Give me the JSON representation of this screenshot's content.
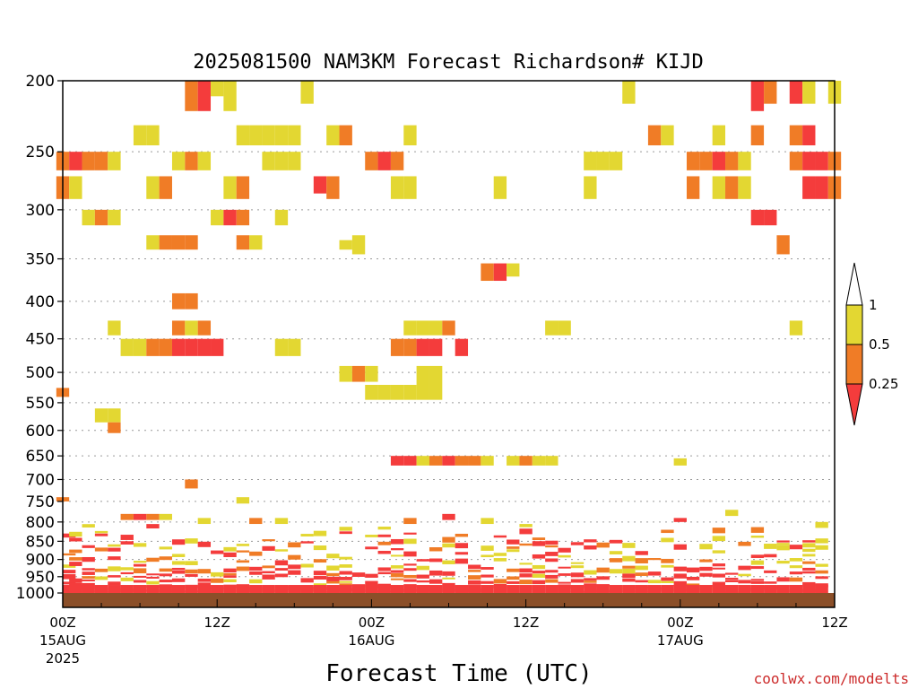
{
  "chart_data": {
    "type": "heatmap",
    "title": "2025081500 NAM3KM Forecast Richardson# KIJD",
    "xlabel": "Forecast Time (UTC)",
    "ylabel": "",
    "xlim": [
      0,
      60
    ],
    "ylim": [
      1000,
      200
    ],
    "y_scale": "log",
    "yticks": [
      "200",
      "250",
      "300",
      "350",
      "400",
      "450",
      "500",
      "550",
      "600",
      "650",
      "700",
      "750",
      "800",
      "850",
      "900",
      "950",
      "1000"
    ],
    "grid": true,
    "xticks": [
      {
        "t": 0,
        "label": "00Z",
        "sub1": "15AUG",
        "sub2": "2025"
      },
      {
        "t": 12,
        "label": "12Z",
        "sub1": "",
        "sub2": ""
      },
      {
        "t": 24,
        "label": "00Z",
        "sub1": "16AUG",
        "sub2": ""
      },
      {
        "t": 36,
        "label": "12Z",
        "sub1": "",
        "sub2": ""
      },
      {
        "t": 48,
        "label": "00Z",
        "sub1": "17AUG",
        "sub2": ""
      },
      {
        "t": 60,
        "label": "12Z",
        "sub1": "",
        "sub2": ""
      }
    ],
    "legend": {
      "position": "right",
      "labels": [
        "1",
        "0.5",
        "0.25"
      ],
      "bins": [
        {
          "range": "0.5-1",
          "color": "#e3d732"
        },
        {
          "range": "0.25-0.5",
          "color": "#f07c26"
        },
        {
          "range": "<0.25",
          "color": "#f43c3c"
        }
      ]
    },
    "colors": {
      "low": "#f43c3c",
      "mid": "#f07c26",
      "high": "#e3d732",
      "ground": "#8b4f29"
    },
    "cells": [
      [
        10,
        200,
        220,
        "mid"
      ],
      [
        11,
        200,
        220,
        "low"
      ],
      [
        12,
        200,
        210,
        "high"
      ],
      [
        13,
        200,
        220,
        "high"
      ],
      [
        19,
        200,
        215,
        "high"
      ],
      [
        44,
        200,
        215,
        "high"
      ],
      [
        54,
        200,
        220,
        "low"
      ],
      [
        55,
        200,
        215,
        "mid"
      ],
      [
        57,
        200,
        215,
        "low"
      ],
      [
        58,
        200,
        215,
        "high"
      ],
      [
        60,
        200,
        215,
        "high"
      ],
      [
        6,
        230,
        245,
        "high"
      ],
      [
        7,
        230,
        245,
        "high"
      ],
      [
        14,
        230,
        245,
        "high"
      ],
      [
        15,
        230,
        245,
        "high"
      ],
      [
        16,
        230,
        245,
        "high"
      ],
      [
        17,
        230,
        245,
        "high"
      ],
      [
        18,
        230,
        245,
        "high"
      ],
      [
        21,
        230,
        245,
        "high"
      ],
      [
        22,
        230,
        245,
        "mid"
      ],
      [
        27,
        230,
        245,
        "high"
      ],
      [
        46,
        230,
        245,
        "mid"
      ],
      [
        47,
        230,
        245,
        "high"
      ],
      [
        51,
        230,
        245,
        "high"
      ],
      [
        54,
        230,
        245,
        "mid"
      ],
      [
        57,
        230,
        245,
        "mid"
      ],
      [
        58,
        230,
        245,
        "low"
      ],
      [
        0,
        250,
        265,
        "mid"
      ],
      [
        1,
        250,
        265,
        "low"
      ],
      [
        2,
        250,
        265,
        "mid"
      ],
      [
        3,
        250,
        265,
        "mid"
      ],
      [
        4,
        250,
        265,
        "high"
      ],
      [
        9,
        250,
        265,
        "high"
      ],
      [
        10,
        250,
        265,
        "mid"
      ],
      [
        11,
        250,
        265,
        "high"
      ],
      [
        16,
        250,
        265,
        "high"
      ],
      [
        17,
        250,
        265,
        "high"
      ],
      [
        18,
        250,
        265,
        "high"
      ],
      [
        24,
        250,
        265,
        "mid"
      ],
      [
        25,
        250,
        265,
        "low"
      ],
      [
        26,
        250,
        265,
        "mid"
      ],
      [
        41,
        250,
        265,
        "high"
      ],
      [
        42,
        250,
        265,
        "high"
      ],
      [
        43,
        250,
        265,
        "high"
      ],
      [
        49,
        250,
        265,
        "mid"
      ],
      [
        50,
        250,
        265,
        "mid"
      ],
      [
        51,
        250,
        265,
        "low"
      ],
      [
        52,
        250,
        265,
        "mid"
      ],
      [
        53,
        250,
        265,
        "high"
      ],
      [
        57,
        250,
        265,
        "mid"
      ],
      [
        58,
        250,
        265,
        "low"
      ],
      [
        59,
        250,
        265,
        "low"
      ],
      [
        60,
        250,
        265,
        "mid"
      ],
      [
        0,
        270,
        290,
        "mid"
      ],
      [
        1,
        270,
        290,
        "high"
      ],
      [
        7,
        270,
        290,
        "high"
      ],
      [
        8,
        270,
        290,
        "mid"
      ],
      [
        13,
        270,
        290,
        "high"
      ],
      [
        14,
        270,
        290,
        "mid"
      ],
      [
        20,
        270,
        285,
        "low"
      ],
      [
        21,
        270,
        290,
        "mid"
      ],
      [
        26,
        270,
        290,
        "high"
      ],
      [
        27,
        270,
        290,
        "high"
      ],
      [
        34,
        270,
        290,
        "high"
      ],
      [
        41,
        270,
        290,
        "high"
      ],
      [
        49,
        270,
        290,
        "mid"
      ],
      [
        51,
        270,
        290,
        "high"
      ],
      [
        52,
        270,
        290,
        "mid"
      ],
      [
        53,
        270,
        290,
        "high"
      ],
      [
        58,
        270,
        290,
        "low"
      ],
      [
        59,
        270,
        290,
        "low"
      ],
      [
        60,
        270,
        290,
        "mid"
      ],
      [
        2,
        300,
        315,
        "high"
      ],
      [
        3,
        300,
        315,
        "mid"
      ],
      [
        4,
        300,
        315,
        "high"
      ],
      [
        12,
        300,
        315,
        "high"
      ],
      [
        13,
        300,
        315,
        "low"
      ],
      [
        14,
        300,
        315,
        "mid"
      ],
      [
        17,
        300,
        315,
        "high"
      ],
      [
        54,
        300,
        315,
        "low"
      ],
      [
        55,
        300,
        315,
        "low"
      ],
      [
        7,
        325,
        340,
        "high"
      ],
      [
        8,
        325,
        340,
        "mid"
      ],
      [
        9,
        325,
        340,
        "mid"
      ],
      [
        10,
        325,
        340,
        "mid"
      ],
      [
        14,
        325,
        340,
        "mid"
      ],
      [
        15,
        325,
        340,
        "high"
      ],
      [
        22,
        330,
        340,
        "high"
      ],
      [
        23,
        325,
        345,
        "high"
      ],
      [
        56,
        325,
        345,
        "mid"
      ],
      [
        33,
        355,
        375,
        "mid"
      ],
      [
        34,
        355,
        375,
        "low"
      ],
      [
        35,
        355,
        370,
        "high"
      ],
      [
        9,
        390,
        410,
        "mid"
      ],
      [
        10,
        390,
        410,
        "mid"
      ],
      [
        4,
        425,
        445,
        "high"
      ],
      [
        9,
        425,
        445,
        "mid"
      ],
      [
        10,
        425,
        445,
        "high"
      ],
      [
        11,
        425,
        445,
        "mid"
      ],
      [
        27,
        425,
        445,
        "high"
      ],
      [
        28,
        425,
        445,
        "high"
      ],
      [
        29,
        425,
        445,
        "high"
      ],
      [
        30,
        425,
        445,
        "mid"
      ],
      [
        38,
        425,
        445,
        "high"
      ],
      [
        39,
        425,
        445,
        "high"
      ],
      [
        57,
        425,
        445,
        "high"
      ],
      [
        5,
        450,
        475,
        "high"
      ],
      [
        6,
        450,
        475,
        "high"
      ],
      [
        7,
        450,
        475,
        "mid"
      ],
      [
        8,
        450,
        475,
        "mid"
      ],
      [
        9,
        450,
        475,
        "low"
      ],
      [
        10,
        450,
        475,
        "low"
      ],
      [
        11,
        450,
        475,
        "low"
      ],
      [
        12,
        450,
        475,
        "low"
      ],
      [
        17,
        450,
        475,
        "high"
      ],
      [
        18,
        450,
        475,
        "high"
      ],
      [
        26,
        450,
        475,
        "mid"
      ],
      [
        27,
        450,
        475,
        "mid"
      ],
      [
        28,
        450,
        475,
        "low"
      ],
      [
        29,
        450,
        475,
        "low"
      ],
      [
        31,
        450,
        475,
        "low"
      ],
      [
        22,
        490,
        515,
        "high"
      ],
      [
        23,
        490,
        515,
        "mid"
      ],
      [
        24,
        490,
        515,
        "high"
      ],
      [
        28,
        490,
        520,
        "high"
      ],
      [
        29,
        490,
        520,
        "high"
      ],
      [
        24,
        520,
        545,
        "high"
      ],
      [
        25,
        520,
        545,
        "high"
      ],
      [
        26,
        520,
        545,
        "high"
      ],
      [
        27,
        520,
        545,
        "high"
      ],
      [
        28,
        520,
        545,
        "high"
      ],
      [
        29,
        520,
        545,
        "high"
      ],
      [
        0,
        525,
        540,
        "mid"
      ],
      [
        3,
        560,
        585,
        "high"
      ],
      [
        4,
        560,
        585,
        "high"
      ],
      [
        4,
        585,
        605,
        "mid"
      ],
      [
        26,
        650,
        670,
        "low"
      ],
      [
        27,
        650,
        670,
        "low"
      ],
      [
        28,
        650,
        670,
        "high"
      ],
      [
        29,
        650,
        670,
        "mid"
      ],
      [
        30,
        650,
        670,
        "low"
      ],
      [
        31,
        650,
        670,
        "mid"
      ],
      [
        32,
        650,
        670,
        "mid"
      ],
      [
        33,
        650,
        670,
        "high"
      ],
      [
        35,
        650,
        670,
        "high"
      ],
      [
        36,
        650,
        670,
        "mid"
      ],
      [
        37,
        650,
        670,
        "high"
      ],
      [
        38,
        650,
        670,
        "high"
      ],
      [
        48,
        655,
        670,
        "high"
      ],
      [
        10,
        700,
        720,
        "mid"
      ],
      [
        0,
        740,
        750,
        "mid"
      ],
      [
        14,
        740,
        755,
        "high"
      ],
      [
        52,
        770,
        785,
        "high"
      ],
      [
        5,
        780,
        795,
        "mid"
      ],
      [
        6,
        780,
        795,
        "low"
      ],
      [
        7,
        780,
        795,
        "mid"
      ],
      [
        8,
        780,
        795,
        "high"
      ],
      [
        11,
        790,
        805,
        "high"
      ],
      [
        15,
        790,
        805,
        "mid"
      ],
      [
        17,
        790,
        805,
        "high"
      ],
      [
        27,
        790,
        805,
        "mid"
      ],
      [
        30,
        780,
        795,
        "low"
      ],
      [
        33,
        790,
        805,
        "high"
      ],
      [
        48,
        790,
        800,
        "low"
      ],
      [
        59,
        800,
        815,
        "high"
      ]
    ]
  }
}
